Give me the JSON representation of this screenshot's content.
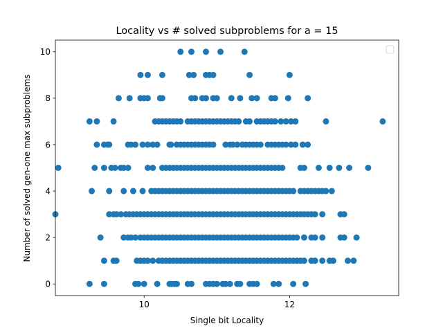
{
  "chart_data": {
    "type": "scatter",
    "title": "Locality vs # solved subproblems for a = 15",
    "xlabel": "Single bit Locality",
    "ylabel": "Number of solved gen-one max subproblems",
    "xlim": [
      8.78,
      13.5
    ],
    "ylim": [
      -0.5,
      10.5
    ],
    "xticks": [
      10,
      12
    ],
    "yticks": [
      0,
      2,
      4,
      6,
      8,
      10
    ],
    "marker_color": "#1f77b4",
    "legend": "top-right (empty)",
    "grid": false,
    "points_by_y": {
      "0": [
        9.25,
        9.45,
        9.88,
        9.92,
        10.0,
        10.18,
        10.35,
        10.38,
        10.42,
        10.45,
        10.6,
        10.65,
        10.85,
        10.9,
        10.95,
        11.0,
        11.08,
        11.12,
        11.18,
        11.28,
        11.32,
        11.45,
        11.5,
        11.55,
        11.78,
        11.85,
        12.05,
        12.22
      ],
      "1": [
        9.45,
        9.58,
        9.62,
        9.9,
        9.95,
        10.0,
        10.05,
        10.12,
        10.2,
        10.25,
        10.3,
        10.35,
        10.4,
        10.45,
        10.5,
        10.55,
        10.6,
        10.65,
        10.7,
        10.75,
        10.8,
        10.85,
        10.9,
        10.95,
        11.0,
        11.05,
        11.1,
        11.15,
        11.2,
        11.25,
        11.3,
        11.35,
        11.4,
        11.45,
        11.5,
        11.55,
        11.6,
        11.65,
        11.7,
        11.75,
        11.8,
        11.85,
        11.9,
        11.95,
        12.0,
        12.05,
        12.1,
        12.15,
        12.2,
        12.3,
        12.35,
        12.45,
        12.55,
        12.6,
        12.8,
        12.88
      ],
      "2": [
        9.4,
        9.72,
        9.78,
        9.82,
        9.88,
        9.95,
        10.0,
        10.05,
        10.1,
        10.15,
        10.2,
        10.25,
        10.3,
        10.35,
        10.4,
        10.45,
        10.5,
        10.55,
        10.6,
        10.65,
        10.7,
        10.75,
        10.8,
        10.85,
        10.9,
        10.95,
        11.0,
        11.05,
        11.1,
        11.15,
        11.2,
        11.25,
        11.3,
        11.35,
        11.4,
        11.45,
        11.5,
        11.55,
        11.6,
        11.65,
        11.7,
        11.75,
        11.8,
        11.85,
        11.9,
        11.95,
        12.0,
        12.05,
        12.1,
        12.2,
        12.3,
        12.35,
        12.45,
        12.7,
        12.75,
        12.92
      ],
      "3": [
        8.78,
        9.52,
        9.58,
        9.62,
        9.68,
        9.75,
        9.8,
        9.85,
        9.9,
        9.95,
        10.0,
        10.05,
        10.1,
        10.15,
        10.2,
        10.25,
        10.3,
        10.35,
        10.4,
        10.45,
        10.5,
        10.55,
        10.6,
        10.65,
        10.7,
        10.75,
        10.8,
        10.85,
        10.9,
        10.95,
        11.0,
        11.05,
        11.1,
        11.15,
        11.2,
        11.25,
        11.3,
        11.35,
        11.4,
        11.45,
        11.5,
        11.55,
        11.6,
        11.65,
        11.7,
        11.75,
        11.8,
        11.85,
        11.9,
        11.95,
        12.0,
        12.05,
        12.1,
        12.15,
        12.2,
        12.25,
        12.3,
        12.35,
        12.45,
        12.7,
        12.75
      ],
      "4": [
        9.28,
        9.52,
        9.72,
        9.85,
        9.98,
        10.1,
        10.15,
        10.2,
        10.25,
        10.3,
        10.35,
        10.4,
        10.45,
        10.5,
        10.55,
        10.6,
        10.65,
        10.7,
        10.75,
        10.8,
        10.85,
        10.9,
        10.95,
        11.0,
        11.05,
        11.1,
        11.15,
        11.2,
        11.25,
        11.3,
        11.35,
        11.4,
        11.45,
        11.5,
        11.55,
        11.6,
        11.65,
        11.7,
        11.75,
        11.8,
        11.85,
        11.9,
        11.95,
        12.0,
        12.05,
        12.15,
        12.2,
        12.25,
        12.3,
        12.35,
        12.4,
        12.45,
        12.5,
        12.58
      ],
      "5": [
        8.82,
        9.32,
        9.45,
        9.55,
        9.6,
        9.68,
        9.72,
        9.78,
        10.05,
        10.12,
        10.25,
        10.3,
        10.35,
        10.4,
        10.45,
        10.5,
        10.55,
        10.6,
        10.65,
        10.7,
        10.75,
        10.8,
        10.85,
        10.9,
        10.95,
        11.0,
        11.05,
        11.1,
        11.15,
        11.2,
        11.25,
        11.3,
        11.35,
        11.4,
        11.45,
        11.5,
        11.55,
        11.6,
        11.65,
        11.7,
        11.75,
        11.8,
        11.85,
        11.9,
        12.15,
        12.2,
        12.4,
        12.55,
        12.68,
        12.82,
        13.08
      ],
      "6": [
        9.35,
        9.45,
        9.5,
        9.52,
        9.78,
        9.82,
        9.88,
        9.98,
        10.05,
        10.12,
        10.18,
        10.35,
        10.37,
        10.45,
        10.5,
        10.55,
        10.6,
        10.65,
        10.7,
        10.75,
        10.8,
        10.85,
        10.9,
        10.95,
        11.12,
        11.18,
        11.22,
        11.28,
        11.35,
        11.4,
        11.45,
        11.5,
        11.55,
        11.6,
        11.7,
        11.75,
        11.8,
        11.85,
        11.9,
        11.95,
        12.02,
        12.08,
        12.18,
        12.25
      ],
      "7": [
        9.25,
        9.35,
        9.58,
        10.15,
        10.2,
        10.25,
        10.3,
        10.35,
        10.4,
        10.45,
        10.5,
        10.6,
        10.65,
        10.7,
        10.75,
        10.8,
        10.85,
        10.9,
        10.95,
        11.0,
        11.05,
        11.1,
        11.15,
        11.2,
        11.25,
        11.3,
        11.4,
        11.45,
        11.55,
        11.6,
        11.65,
        11.7,
        11.75,
        11.8,
        11.88,
        11.95,
        12.02,
        12.08,
        12.5,
        13.28
      ],
      "8": [
        9.65,
        9.8,
        9.95,
        10.0,
        10.05,
        10.22,
        10.25,
        10.65,
        10.7,
        10.8,
        10.85,
        10.95,
        11.0,
        11.2,
        11.32,
        11.48,
        11.55,
        11.75,
        11.8,
        11.98,
        12.25
      ],
      "9": [
        9.95,
        10.05,
        10.25,
        10.62,
        10.68,
        10.85,
        10.9,
        10.95,
        11.45,
        12.0
      ],
      "10": [
        10.5,
        10.65,
        10.85,
        11.05,
        11.38
      ]
    }
  }
}
